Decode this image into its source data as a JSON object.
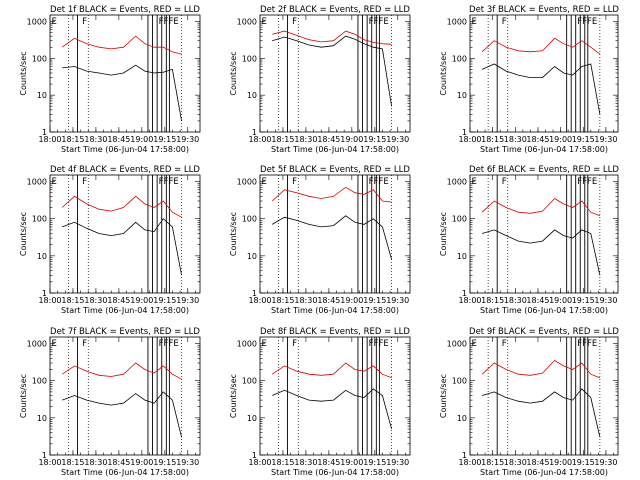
{
  "figure": {
    "xlabel": "Start Time (06-Jun-04 17:58:00)",
    "ylabel": "Counts/sec",
    "x_ticks": [
      "18:00",
      "18:15",
      "18:30",
      "18:45",
      "19:00",
      "19:15",
      "19:30"
    ],
    "x_tick_minutes": [
      2,
      17,
      32,
      47,
      62,
      77,
      92
    ],
    "xlim_minutes": [
      2,
      100
    ],
    "y_ticks": [
      "1",
      "10",
      "100",
      "1000"
    ],
    "y_tick_values": [
      1,
      10,
      100,
      1000
    ],
    "ylim": [
      1,
      1500
    ],
    "y_scale": "log",
    "colors": {
      "events": "#000000",
      "lld": "#dd0000"
    },
    "markers": {
      "dotted_minutes": [
        14,
        27,
        88
      ],
      "solid_minutes": [
        20,
        66,
        69,
        72,
        75,
        78,
        80
      ],
      "labels": [
        {
          "text": "E",
          "minute": 3
        },
        {
          "text": "F",
          "minute": 23
        },
        {
          "text": "FFFE",
          "minute": 73
        }
      ]
    }
  },
  "chart_data": [
    {
      "type": "line",
      "title": "Det 1f BLACK = Events, RED = LLD",
      "x_minutes": [
        10,
        18,
        26,
        34,
        42,
        50,
        58,
        64,
        70,
        76,
        82,
        88
      ],
      "series": [
        {
          "name": "Events",
          "color": "#000000",
          "values": [
            55,
            60,
            45,
            40,
            35,
            40,
            65,
            45,
            40,
            42,
            50,
            2
          ]
        },
        {
          "name": "LLD",
          "color": "#dd0000",
          "values": [
            200,
            350,
            250,
            200,
            180,
            200,
            400,
            250,
            200,
            200,
            150,
            130
          ]
        }
      ]
    },
    {
      "type": "line",
      "title": "Det 2f BLACK = Events, RED = LLD",
      "x_minutes": [
        10,
        18,
        26,
        34,
        42,
        50,
        58,
        64,
        70,
        76,
        82,
        88
      ],
      "series": [
        {
          "name": "Events",
          "color": "#000000",
          "values": [
            300,
            380,
            300,
            230,
            200,
            220,
            400,
            330,
            250,
            200,
            180,
            5
          ]
        },
        {
          "name": "LLD",
          "color": "#dd0000",
          "values": [
            450,
            550,
            420,
            320,
            280,
            300,
            550,
            450,
            320,
            270,
            250,
            240
          ]
        }
      ]
    },
    {
      "type": "line",
      "title": "Det 3f BLACK = Events, RED = LLD",
      "x_minutes": [
        10,
        18,
        26,
        34,
        42,
        50,
        58,
        64,
        70,
        76,
        82,
        88
      ],
      "series": [
        {
          "name": "Events",
          "color": "#000000",
          "values": [
            50,
            70,
            45,
            35,
            30,
            30,
            60,
            40,
            35,
            60,
            70,
            3
          ]
        },
        {
          "name": "LLD",
          "color": "#dd0000",
          "values": [
            150,
            300,
            200,
            160,
            150,
            160,
            350,
            250,
            200,
            300,
            200,
            130
          ]
        }
      ]
    },
    {
      "type": "line",
      "title": "Det 4f BLACK = Events, RED = LLD",
      "x_minutes": [
        10,
        18,
        26,
        34,
        42,
        50,
        58,
        64,
        70,
        76,
        82,
        88
      ],
      "series": [
        {
          "name": "Events",
          "color": "#000000",
          "values": [
            60,
            80,
            55,
            40,
            35,
            40,
            80,
            50,
            45,
            100,
            60,
            3
          ]
        },
        {
          "name": "LLD",
          "color": "#dd0000",
          "values": [
            200,
            400,
            250,
            180,
            160,
            200,
            400,
            250,
            200,
            300,
            150,
            110
          ]
        }
      ]
    },
    {
      "type": "line",
      "title": "Det 5f BLACK = Events, RED = LLD",
      "x_minutes": [
        10,
        18,
        26,
        34,
        42,
        50,
        58,
        64,
        70,
        76,
        82,
        88
      ],
      "series": [
        {
          "name": "Events",
          "color": "#000000",
          "values": [
            70,
            110,
            90,
            70,
            60,
            65,
            120,
            80,
            70,
            100,
            60,
            8
          ]
        },
        {
          "name": "LLD",
          "color": "#dd0000",
          "values": [
            300,
            600,
            500,
            400,
            350,
            400,
            700,
            500,
            450,
            600,
            300,
            280
          ]
        }
      ]
    },
    {
      "type": "line",
      "title": "Det 6f BLACK = Events, RED = LLD",
      "x_minutes": [
        10,
        18,
        26,
        34,
        42,
        50,
        58,
        64,
        70,
        76,
        82,
        88
      ],
      "series": [
        {
          "name": "Events",
          "color": "#000000",
          "values": [
            40,
            50,
            35,
            25,
            22,
            25,
            50,
            35,
            30,
            50,
            40,
            3
          ]
        },
        {
          "name": "LLD",
          "color": "#dd0000",
          "values": [
            150,
            300,
            200,
            150,
            140,
            160,
            350,
            250,
            200,
            300,
            150,
            120
          ]
        }
      ]
    },
    {
      "type": "line",
      "title": "Det 7f BLACK = Events, RED = LLD",
      "x_minutes": [
        10,
        18,
        26,
        34,
        42,
        50,
        58,
        64,
        70,
        76,
        82,
        88
      ],
      "series": [
        {
          "name": "Events",
          "color": "#000000",
          "values": [
            30,
            40,
            30,
            25,
            22,
            25,
            45,
            30,
            25,
            50,
            30,
            3
          ]
        },
        {
          "name": "LLD",
          "color": "#dd0000",
          "values": [
            150,
            250,
            180,
            140,
            130,
            150,
            300,
            200,
            160,
            250,
            150,
            110
          ]
        }
      ]
    },
    {
      "type": "line",
      "title": "Det 8f BLACK = Events, RED = LLD",
      "x_minutes": [
        10,
        18,
        26,
        34,
        42,
        50,
        58,
        64,
        70,
        76,
        82,
        88
      ],
      "series": [
        {
          "name": "Events",
          "color": "#000000",
          "values": [
            40,
            55,
            40,
            30,
            28,
            30,
            55,
            40,
            35,
            60,
            40,
            5
          ]
        },
        {
          "name": "LLD",
          "color": "#dd0000",
          "values": [
            150,
            250,
            180,
            150,
            140,
            150,
            300,
            200,
            180,
            250,
            150,
            120
          ]
        }
      ]
    },
    {
      "type": "line",
      "title": "Det 9f BLACK = Events, RED = LLD",
      "x_minutes": [
        10,
        18,
        26,
        34,
        42,
        50,
        58,
        64,
        70,
        76,
        82,
        88
      ],
      "series": [
        {
          "name": "Events",
          "color": "#000000",
          "values": [
            40,
            50,
            35,
            28,
            25,
            28,
            50,
            35,
            30,
            60,
            35,
            3
          ]
        },
        {
          "name": "LLD",
          "color": "#dd0000",
          "values": [
            150,
            300,
            200,
            150,
            140,
            160,
            350,
            250,
            200,
            300,
            150,
            120
          ]
        }
      ]
    }
  ]
}
